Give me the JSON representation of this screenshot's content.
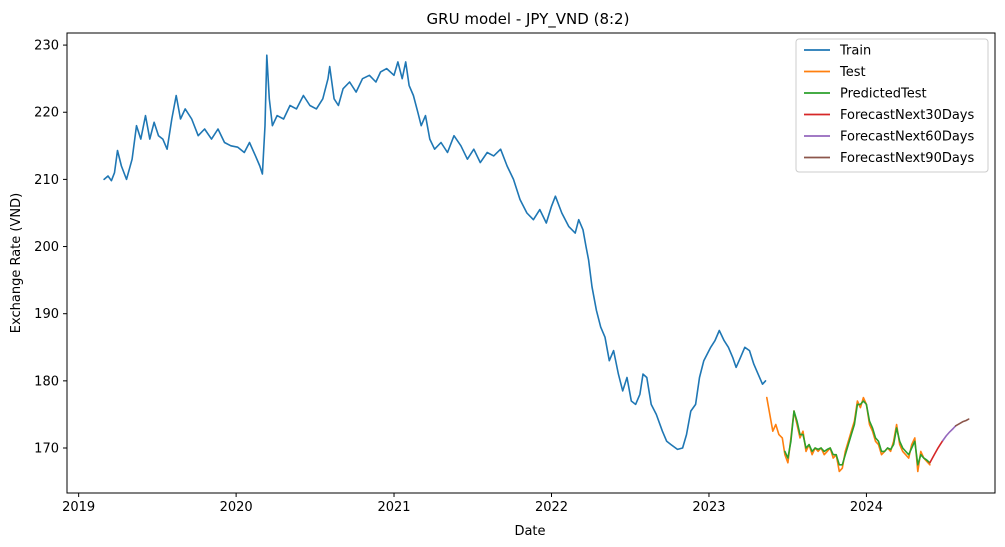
{
  "chart_data": {
    "type": "line",
    "title": "GRU model - JPY_VND (8:2)",
    "xlabel": "Date",
    "ylabel": "Exchange Rate (VND)",
    "xlim": [
      "2018-12-05",
      "2024-10-25"
    ],
    "ylim": [
      163.3,
      231.8
    ],
    "x_ticks": [
      "2019",
      "2020",
      "2021",
      "2022",
      "2023",
      "2024"
    ],
    "y_ticks": [
      170,
      180,
      190,
      200,
      210,
      220,
      230
    ],
    "grid": false,
    "legend_position": "top-right",
    "series": [
      {
        "name": "Train",
        "color": "#1f77b4",
        "points": [
          [
            "2019-03-01",
            210.0
          ],
          [
            "2019-03-10",
            210.5
          ],
          [
            "2019-03-18",
            209.8
          ],
          [
            "2019-03-25",
            211.0
          ],
          [
            "2019-04-01",
            214.3
          ],
          [
            "2019-04-10",
            212.0
          ],
          [
            "2019-04-22",
            210.0
          ],
          [
            "2019-05-05",
            213.0
          ],
          [
            "2019-05-15",
            218.0
          ],
          [
            "2019-05-25",
            216.0
          ],
          [
            "2019-06-05",
            219.5
          ],
          [
            "2019-06-15",
            216.0
          ],
          [
            "2019-06-25",
            218.5
          ],
          [
            "2019-07-05",
            216.5
          ],
          [
            "2019-07-15",
            216.0
          ],
          [
            "2019-07-25",
            214.5
          ],
          [
            "2019-08-05",
            219.0
          ],
          [
            "2019-08-15",
            222.5
          ],
          [
            "2019-08-25",
            219.0
          ],
          [
            "2019-09-05",
            220.5
          ],
          [
            "2019-09-20",
            219.0
          ],
          [
            "2019-10-05",
            216.5
          ],
          [
            "2019-10-20",
            217.5
          ],
          [
            "2019-11-05",
            216.0
          ],
          [
            "2019-11-20",
            217.5
          ],
          [
            "2019-12-05",
            215.5
          ],
          [
            "2019-12-20",
            215.0
          ],
          [
            "2020-01-05",
            214.8
          ],
          [
            "2020-01-20",
            214.0
          ],
          [
            "2020-02-01",
            215.5
          ],
          [
            "2020-02-15",
            213.5
          ],
          [
            "2020-02-25",
            212.0
          ],
          [
            "2020-03-02",
            210.8
          ],
          [
            "2020-03-08",
            218.0
          ],
          [
            "2020-03-12",
            228.5
          ],
          [
            "2020-03-18",
            222.0
          ],
          [
            "2020-03-25",
            218.0
          ],
          [
            "2020-04-05",
            219.5
          ],
          [
            "2020-04-20",
            219.0
          ],
          [
            "2020-05-05",
            221.0
          ],
          [
            "2020-05-20",
            220.5
          ],
          [
            "2020-06-05",
            222.5
          ],
          [
            "2020-06-20",
            221.0
          ],
          [
            "2020-07-05",
            220.5
          ],
          [
            "2020-07-20",
            222.0
          ],
          [
            "2020-08-01",
            225.0
          ],
          [
            "2020-08-05",
            226.8
          ],
          [
            "2020-08-15",
            222.0
          ],
          [
            "2020-08-25",
            221.0
          ],
          [
            "2020-09-05",
            223.5
          ],
          [
            "2020-09-20",
            224.5
          ],
          [
            "2020-10-05",
            223.0
          ],
          [
            "2020-10-20",
            225.0
          ],
          [
            "2020-11-05",
            225.5
          ],
          [
            "2020-11-20",
            224.5
          ],
          [
            "2020-12-01",
            226.0
          ],
          [
            "2020-12-15",
            226.5
          ],
          [
            "2021-01-01",
            225.5
          ],
          [
            "2021-01-10",
            227.5
          ],
          [
            "2021-01-20",
            225.0
          ],
          [
            "2021-01-28",
            227.5
          ],
          [
            "2021-02-05",
            224.0
          ],
          [
            "2021-02-15",
            222.5
          ],
          [
            "2021-02-25",
            220.0
          ],
          [
            "2021-03-05",
            218.0
          ],
          [
            "2021-03-15",
            219.5
          ],
          [
            "2021-03-25",
            216.0
          ],
          [
            "2021-04-05",
            214.5
          ],
          [
            "2021-04-20",
            215.5
          ],
          [
            "2021-05-05",
            214.0
          ],
          [
            "2021-05-20",
            216.5
          ],
          [
            "2021-06-05",
            215.0
          ],
          [
            "2021-06-20",
            213.0
          ],
          [
            "2021-07-05",
            214.5
          ],
          [
            "2021-07-20",
            212.5
          ],
          [
            "2021-08-05",
            214.0
          ],
          [
            "2021-08-20",
            213.5
          ],
          [
            "2021-09-05",
            214.5
          ],
          [
            "2021-09-20",
            212.0
          ],
          [
            "2021-10-05",
            210.0
          ],
          [
            "2021-10-20",
            207.0
          ],
          [
            "2021-11-05",
            205.0
          ],
          [
            "2021-11-20",
            204.0
          ],
          [
            "2021-12-05",
            205.5
          ],
          [
            "2021-12-20",
            203.5
          ],
          [
            "2022-01-01",
            206.0
          ],
          [
            "2022-01-10",
            207.5
          ],
          [
            "2022-01-25",
            205.0
          ],
          [
            "2022-02-10",
            203.0
          ],
          [
            "2022-02-25",
            202.0
          ],
          [
            "2022-03-05",
            204.0
          ],
          [
            "2022-03-15",
            202.5
          ],
          [
            "2022-03-22",
            200.0
          ],
          [
            "2022-03-28",
            198.0
          ],
          [
            "2022-04-05",
            194.0
          ],
          [
            "2022-04-15",
            190.5
          ],
          [
            "2022-04-25",
            188.0
          ],
          [
            "2022-05-05",
            186.5
          ],
          [
            "2022-05-15",
            183.0
          ],
          [
            "2022-05-25",
            184.5
          ],
          [
            "2022-06-05",
            181.0
          ],
          [
            "2022-06-15",
            178.5
          ],
          [
            "2022-06-25",
            180.5
          ],
          [
            "2022-07-05",
            177.0
          ],
          [
            "2022-07-15",
            176.5
          ],
          [
            "2022-07-25",
            178.0
          ],
          [
            "2022-08-01",
            181.0
          ],
          [
            "2022-08-10",
            180.5
          ],
          [
            "2022-08-20",
            176.5
          ],
          [
            "2022-09-01",
            175.0
          ],
          [
            "2022-09-15",
            172.5
          ],
          [
            "2022-09-25",
            171.0
          ],
          [
            "2022-10-05",
            170.5
          ],
          [
            "2022-10-20",
            169.8
          ],
          [
            "2022-11-01",
            170.0
          ],
          [
            "2022-11-10",
            172.0
          ],
          [
            "2022-11-20",
            175.5
          ],
          [
            "2022-12-01",
            176.5
          ],
          [
            "2022-12-10",
            180.5
          ],
          [
            "2022-12-20",
            183.0
          ],
          [
            "2023-01-05",
            185.0
          ],
          [
            "2023-01-15",
            186.0
          ],
          [
            "2023-01-25",
            187.5
          ],
          [
            "2023-02-05",
            186.0
          ],
          [
            "2023-02-15",
            185.0
          ],
          [
            "2023-02-25",
            183.5
          ],
          [
            "2023-03-05",
            182.0
          ],
          [
            "2023-03-15",
            183.5
          ],
          [
            "2023-03-25",
            185.0
          ],
          [
            "2023-04-05",
            184.5
          ],
          [
            "2023-04-15",
            182.5
          ],
          [
            "2023-04-25",
            181.0
          ],
          [
            "2023-05-05",
            179.5
          ],
          [
            "2023-05-12",
            180.0
          ]
        ]
      },
      {
        "name": "Test",
        "color": "#ff7f0e",
        "points": [
          [
            "2023-05-15",
            177.5
          ],
          [
            "2023-05-22",
            175.0
          ],
          [
            "2023-05-29",
            172.5
          ],
          [
            "2023-06-05",
            173.5
          ],
          [
            "2023-06-12",
            172.0
          ],
          [
            "2023-06-20",
            171.5
          ],
          [
            "2023-06-26",
            169.0
          ],
          [
            "2023-07-03",
            167.8
          ],
          [
            "2023-07-10",
            171.5
          ],
          [
            "2023-07-17",
            175.5
          ],
          [
            "2023-07-24",
            173.5
          ],
          [
            "2023-07-31",
            171.5
          ],
          [
            "2023-08-07",
            172.5
          ],
          [
            "2023-08-14",
            169.5
          ],
          [
            "2023-08-21",
            170.5
          ],
          [
            "2023-08-28",
            169.0
          ],
          [
            "2023-09-04",
            170.0
          ],
          [
            "2023-09-11",
            169.5
          ],
          [
            "2023-09-18",
            170.0
          ],
          [
            "2023-09-25",
            169.0
          ],
          [
            "2023-10-02",
            169.5
          ],
          [
            "2023-10-09",
            170.0
          ],
          [
            "2023-10-16",
            168.5
          ],
          [
            "2023-10-23",
            169.0
          ],
          [
            "2023-10-30",
            166.5
          ],
          [
            "2023-11-06",
            167.0
          ],
          [
            "2023-11-13",
            169.5
          ],
          [
            "2023-11-20",
            171.0
          ],
          [
            "2023-11-27",
            172.5
          ],
          [
            "2023-12-04",
            174.0
          ],
          [
            "2023-12-11",
            177.0
          ],
          [
            "2023-12-18",
            176.0
          ],
          [
            "2023-12-25",
            177.5
          ],
          [
            "2024-01-01",
            176.5
          ],
          [
            "2024-01-08",
            173.5
          ],
          [
            "2024-01-15",
            172.5
          ],
          [
            "2024-01-22",
            171.0
          ],
          [
            "2024-01-29",
            170.5
          ],
          [
            "2024-02-05",
            169.0
          ],
          [
            "2024-02-12",
            169.5
          ],
          [
            "2024-02-19",
            170.0
          ],
          [
            "2024-02-26",
            169.5
          ],
          [
            "2024-03-04",
            171.0
          ],
          [
            "2024-03-11",
            173.5
          ],
          [
            "2024-03-18",
            170.5
          ],
          [
            "2024-03-25",
            169.5
          ],
          [
            "2024-04-01",
            169.0
          ],
          [
            "2024-04-08",
            168.5
          ],
          [
            "2024-04-15",
            170.5
          ],
          [
            "2024-04-22",
            171.5
          ],
          [
            "2024-04-29",
            166.5
          ],
          [
            "2024-05-06",
            169.5
          ],
          [
            "2024-05-13",
            168.5
          ],
          [
            "2024-05-20",
            168.0
          ],
          [
            "2024-05-27",
            167.5
          ]
        ]
      },
      {
        "name": "PredictedTest",
        "color": "#2ca02c",
        "points": [
          [
            "2023-06-26",
            169.5
          ],
          [
            "2023-07-03",
            168.5
          ],
          [
            "2023-07-10",
            171.0
          ],
          [
            "2023-07-17",
            175.5
          ],
          [
            "2023-07-24",
            174.0
          ],
          [
            "2023-07-31",
            172.0
          ],
          [
            "2023-08-07",
            172.0
          ],
          [
            "2023-08-14",
            170.0
          ],
          [
            "2023-08-21",
            170.5
          ],
          [
            "2023-08-28",
            169.5
          ],
          [
            "2023-09-04",
            170.0
          ],
          [
            "2023-09-11",
            169.8
          ],
          [
            "2023-09-18",
            170.0
          ],
          [
            "2023-09-25",
            169.5
          ],
          [
            "2023-10-02",
            169.8
          ],
          [
            "2023-10-09",
            170.0
          ],
          [
            "2023-10-16",
            169.0
          ],
          [
            "2023-10-23",
            169.0
          ],
          [
            "2023-10-30",
            167.5
          ],
          [
            "2023-11-06",
            167.5
          ],
          [
            "2023-11-13",
            169.0
          ],
          [
            "2023-11-20",
            170.5
          ],
          [
            "2023-11-27",
            172.0
          ],
          [
            "2023-12-04",
            173.5
          ],
          [
            "2023-12-11",
            176.5
          ],
          [
            "2023-12-18",
            176.5
          ],
          [
            "2023-12-25",
            177.0
          ],
          [
            "2024-01-01",
            176.5
          ],
          [
            "2024-01-08",
            174.0
          ],
          [
            "2024-01-15",
            173.0
          ],
          [
            "2024-01-22",
            171.5
          ],
          [
            "2024-01-29",
            171.0
          ],
          [
            "2024-02-05",
            169.5
          ],
          [
            "2024-02-12",
            169.5
          ],
          [
            "2024-02-19",
            170.0
          ],
          [
            "2024-02-26",
            169.8
          ],
          [
            "2024-03-04",
            170.5
          ],
          [
            "2024-03-11",
            173.0
          ],
          [
            "2024-03-18",
            171.0
          ],
          [
            "2024-03-25",
            170.0
          ],
          [
            "2024-04-01",
            169.5
          ],
          [
            "2024-04-08",
            169.0
          ],
          [
            "2024-04-15",
            170.0
          ],
          [
            "2024-04-22",
            171.0
          ],
          [
            "2024-04-29",
            167.5
          ],
          [
            "2024-05-06",
            169.0
          ],
          [
            "2024-05-13",
            168.5
          ],
          [
            "2024-05-20",
            168.2
          ],
          [
            "2024-05-27",
            167.8
          ]
        ]
      },
      {
        "name": "ForecastNext30Days",
        "color": "#d62728",
        "points": [
          [
            "2024-05-27",
            167.8
          ],
          [
            "2024-06-02",
            168.5
          ],
          [
            "2024-06-08",
            169.2
          ],
          [
            "2024-06-14",
            169.9
          ],
          [
            "2024-06-20",
            170.5
          ],
          [
            "2024-06-26",
            171.1
          ]
        ]
      },
      {
        "name": "ForecastNext60Days",
        "color": "#9467bd",
        "points": [
          [
            "2024-06-26",
            171.1
          ],
          [
            "2024-07-04",
            171.8
          ],
          [
            "2024-07-12",
            172.4
          ],
          [
            "2024-07-20",
            172.9
          ],
          [
            "2024-07-26",
            173.3
          ]
        ]
      },
      {
        "name": "ForecastNext90Days",
        "color": "#8c564b",
        "points": [
          [
            "2024-07-26",
            173.3
          ],
          [
            "2024-08-03",
            173.6
          ],
          [
            "2024-08-11",
            173.9
          ],
          [
            "2024-08-19",
            174.1
          ],
          [
            "2024-08-25",
            174.3
          ]
        ]
      }
    ]
  }
}
